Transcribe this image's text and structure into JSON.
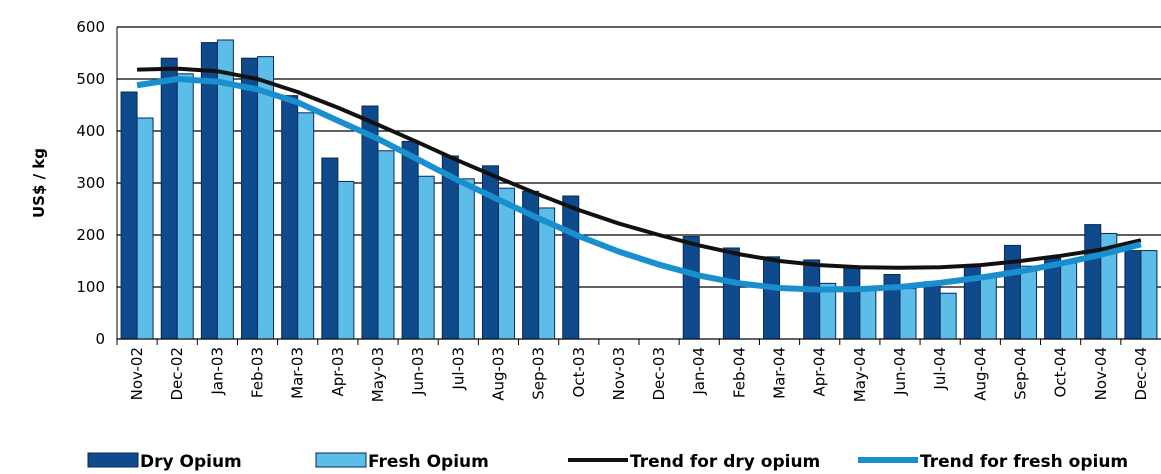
{
  "chart_data": {
    "type": "bar",
    "y_label": "US$ / kg",
    "categories": [
      "Nov-02",
      "Dec-02",
      "Jan-03",
      "Feb-03",
      "Mar-03",
      "Apr-03",
      "May-03",
      "Jun-03",
      "Jul-03",
      "Aug-03",
      "Sep-03",
      "Oct-03",
      "Nov-03",
      "Dec-03",
      "Jan-04",
      "Feb-04",
      "Mar-04",
      "Apr-04",
      "May-04",
      "Jun-04",
      "Jul-04",
      "Aug-04",
      "Sep-04",
      "Oct-04",
      "Nov-04",
      "Dec-04"
    ],
    "series": [
      {
        "name": "Dry Opium",
        "type": "bar",
        "color": "#0e4a8c",
        "values": [
          475,
          540,
          570,
          540,
          468,
          348,
          448,
          380,
          352,
          333,
          284,
          275,
          null,
          null,
          197,
          175,
          158,
          152,
          140,
          124,
          110,
          140,
          180,
          155,
          220,
          170
        ]
      },
      {
        "name": "Fresh Opium",
        "type": "bar",
        "color": "#5cbde9",
        "values": [
          425,
          510,
          575,
          543,
          435,
          303,
          362,
          313,
          308,
          290,
          252,
          null,
          null,
          null,
          null,
          null,
          null,
          107,
          100,
          97,
          88,
          120,
          140,
          147,
          203,
          170
        ]
      },
      {
        "name": "Trend for dry opium",
        "type": "line",
        "color": "#111111",
        "values": [
          518,
          520,
          515,
          500,
          475,
          445,
          412,
          378,
          343,
          310,
          278,
          248,
          222,
          200,
          180,
          163,
          150,
          142,
          138,
          137,
          138,
          142,
          150,
          160,
          172,
          190
        ]
      },
      {
        "name": "Trend for fresh opium",
        "type": "line",
        "color": "#1a8fd0",
        "values": [
          488,
          500,
          495,
          480,
          455,
          420,
          385,
          345,
          305,
          268,
          232,
          198,
          168,
          143,
          122,
          107,
          98,
          95,
          96,
          100,
          108,
          118,
          130,
          145,
          162,
          182
        ]
      }
    ],
    "ylim": [
      0,
      600
    ],
    "yticks": [
      0,
      100,
      200,
      300,
      400,
      500,
      600
    ],
    "grid": true,
    "legend": "bottom"
  }
}
